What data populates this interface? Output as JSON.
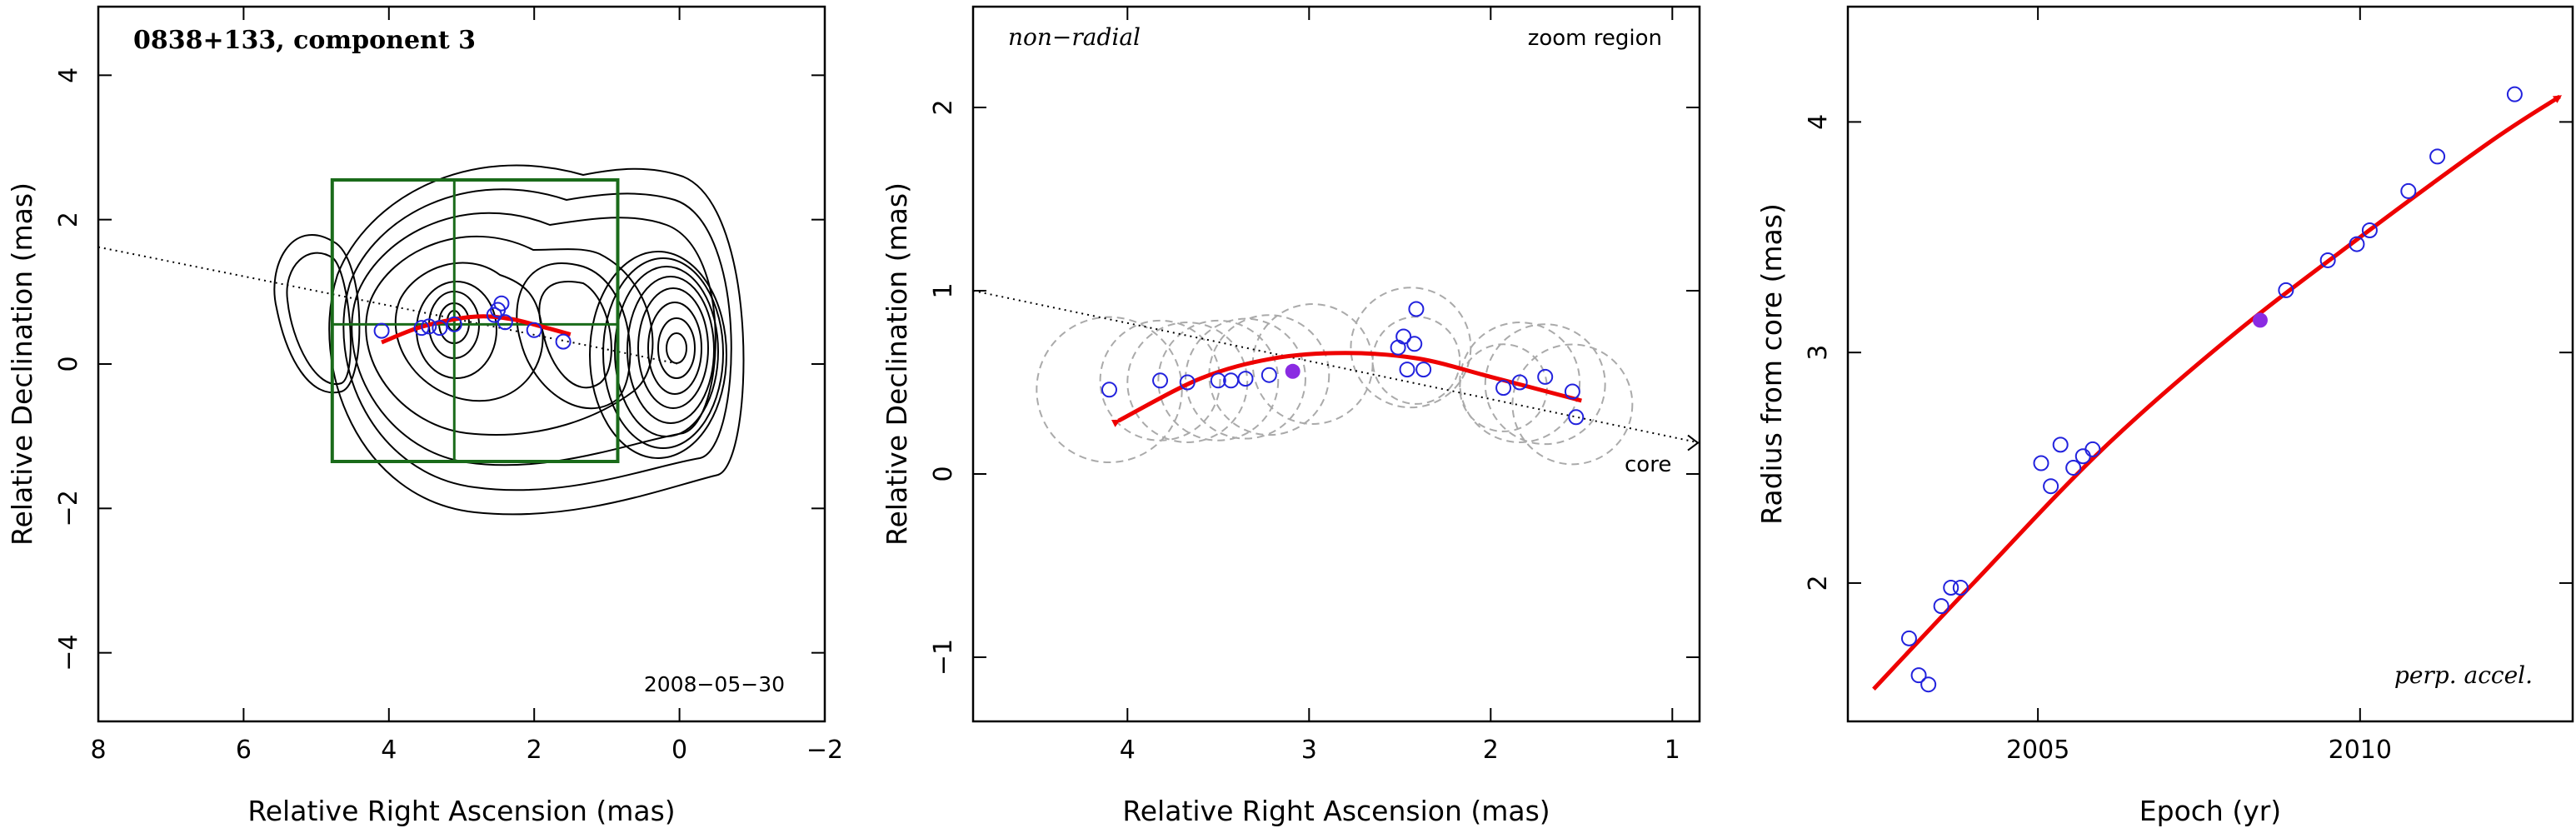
{
  "colors": {
    "fit_curve": "#ee0000",
    "data_point": "#2222dd",
    "highlight_point": "#8a2be2",
    "zoom_box": "#1a6b1a",
    "contour": "#000000",
    "error_circle": "#aaaaaa",
    "axis": "#000000"
  },
  "chart_data": [
    {
      "type": "contour",
      "title": "0838+133, component 3",
      "xlabel": "Relative Right Ascension (mas)",
      "ylabel": "Relative Declination (mas)",
      "xlim": [
        8,
        -2
      ],
      "ylim": [
        -4.95,
        4.95
      ],
      "xticks": [
        8,
        6,
        4,
        2,
        0,
        -2
      ],
      "xtick_labels": [
        "8",
        "6",
        "4",
        "2",
        "0",
        "−2"
      ],
      "yticks": [
        -4,
        -2,
        0,
        2,
        4
      ],
      "ytick_labels": [
        "−4",
        "−2",
        "0",
        "2",
        "4"
      ],
      "date_label": "2008−05−30",
      "zoom_box": {
        "x": [
          4.78,
          0.85
        ],
        "y": [
          -1.35,
          2.55
        ],
        "cross_x": 3.1,
        "cross_y": 0.55
      },
      "core_direction_line": {
        "x": [
          8,
          0
        ],
        "y": [
          1.62,
          0
        ]
      },
      "fit_path": {
        "x": [
          4.1,
          3.6,
          3.1,
          2.7,
          2.3,
          1.9,
          1.5
        ],
        "y": [
          0.3,
          0.5,
          0.62,
          0.66,
          0.62,
          0.52,
          0.41
        ]
      },
      "points": {
        "x": [
          4.1,
          3.55,
          3.45,
          3.3,
          3.1,
          2.55,
          2.5,
          2.45,
          2.4,
          2.0,
          1.6
        ],
        "y": [
          0.46,
          0.5,
          0.52,
          0.5,
          0.55,
          0.68,
          0.75,
          0.84,
          0.58,
          0.47,
          0.31
        ]
      }
    },
    {
      "type": "scatter",
      "title": "non−radial",
      "corner_label": "zoom region",
      "core_label": "core",
      "xlabel": "Relative Right Ascension (mas)",
      "ylabel": "Relative Declination (mas)",
      "xlim": [
        4.85,
        0.85
      ],
      "ylim": [
        -1.35,
        2.55
      ],
      "xticks": [
        4,
        3,
        2,
        1
      ],
      "xtick_labels": [
        "4",
        "3",
        "2",
        "1"
      ],
      "yticks": [
        -1,
        0,
        1,
        2
      ],
      "ytick_labels": [
        "−1",
        "0",
        "1",
        "2"
      ],
      "series": [
        {
          "points": {
            "x": [
              4.1,
              3.82,
              3.67,
              3.5,
              3.43,
              3.35,
              3.22,
              2.51,
              2.48,
              2.41,
              2.42,
              2.46,
              2.37,
              1.93,
              1.84,
              1.7,
              1.55,
              1.53
            ],
            "y": [
              0.46,
              0.51,
              0.5,
              0.51,
              0.51,
              0.52,
              0.54,
              0.69,
              0.75,
              0.9,
              0.71,
              0.57,
              0.57,
              0.47,
              0.5,
              0.53,
              0.45,
              0.31
            ]
          }
        }
      ],
      "highlight_point": {
        "x": 3.09,
        "y": 0.56
      },
      "error_circles": {
        "x": [
          4.1,
          3.82,
          3.67,
          3.5,
          3.35,
          3.22,
          2.98,
          2.44,
          2.41,
          1.93,
          1.84,
          1.7,
          1.55
        ],
        "y": [
          0.46,
          0.51,
          0.5,
          0.51,
          0.52,
          0.54,
          0.6,
          0.69,
          0.62,
          0.47,
          0.5,
          0.49,
          0.38
        ],
        "r": [
          0.4,
          0.33,
          0.33,
          0.33,
          0.33,
          0.33,
          0.33,
          0.33,
          0.24,
          0.24,
          0.33,
          0.33,
          0.33
        ]
      },
      "core_direction_line": {
        "x": [
          4.85,
          0.85
        ],
        "y": [
          1.0,
          0.17
        ]
      },
      "fit_path": {
        "x": [
          4.05,
          3.6,
          3.2,
          2.8,
          2.4,
          2.0,
          1.5
        ],
        "y": [
          0.29,
          0.52,
          0.63,
          0.66,
          0.63,
          0.53,
          0.4
        ]
      }
    },
    {
      "type": "scatter",
      "title": "perp. accel.",
      "xlabel": "Epoch (yr)",
      "ylabel": "Radius from core (mas)",
      "xlim": [
        2002.05,
        2013.3
      ],
      "ylim": [
        1.4,
        4.5
      ],
      "xticks": [
        2005,
        2010
      ],
      "xtick_labels": [
        "2005",
        "2010"
      ],
      "yticks": [
        2,
        3,
        4
      ],
      "ytick_labels": [
        "2",
        "3",
        "4"
      ],
      "series": [
        {
          "points": {
            "x": [
              2003.0,
              2003.15,
              2003.3,
              2003.5,
              2003.65,
              2003.8,
              2005.05,
              2005.2,
              2005.35,
              2005.55,
              2005.7,
              2005.85,
              2008.85,
              2009.5,
              2009.95,
              2010.15,
              2010.75,
              2011.2,
              2012.4
            ],
            "y": [
              1.76,
              1.6,
              1.56,
              1.9,
              1.98,
              1.98,
              2.52,
              2.42,
              2.6,
              2.5,
              2.55,
              2.58,
              3.27,
              3.4,
              3.47,
              3.53,
              3.7,
              3.85,
              4.12
            ]
          }
        }
      ],
      "highlight_point": {
        "x": 2008.45,
        "y": 3.14
      },
      "fit_path": {
        "x": [
          2002.45,
          2004.0,
          2006.0,
          2008.0,
          2010.0,
          2012.0,
          2013.1
        ],
        "y": [
          1.54,
          2.0,
          2.58,
          3.07,
          3.5,
          3.91,
          4.11
        ]
      }
    }
  ]
}
